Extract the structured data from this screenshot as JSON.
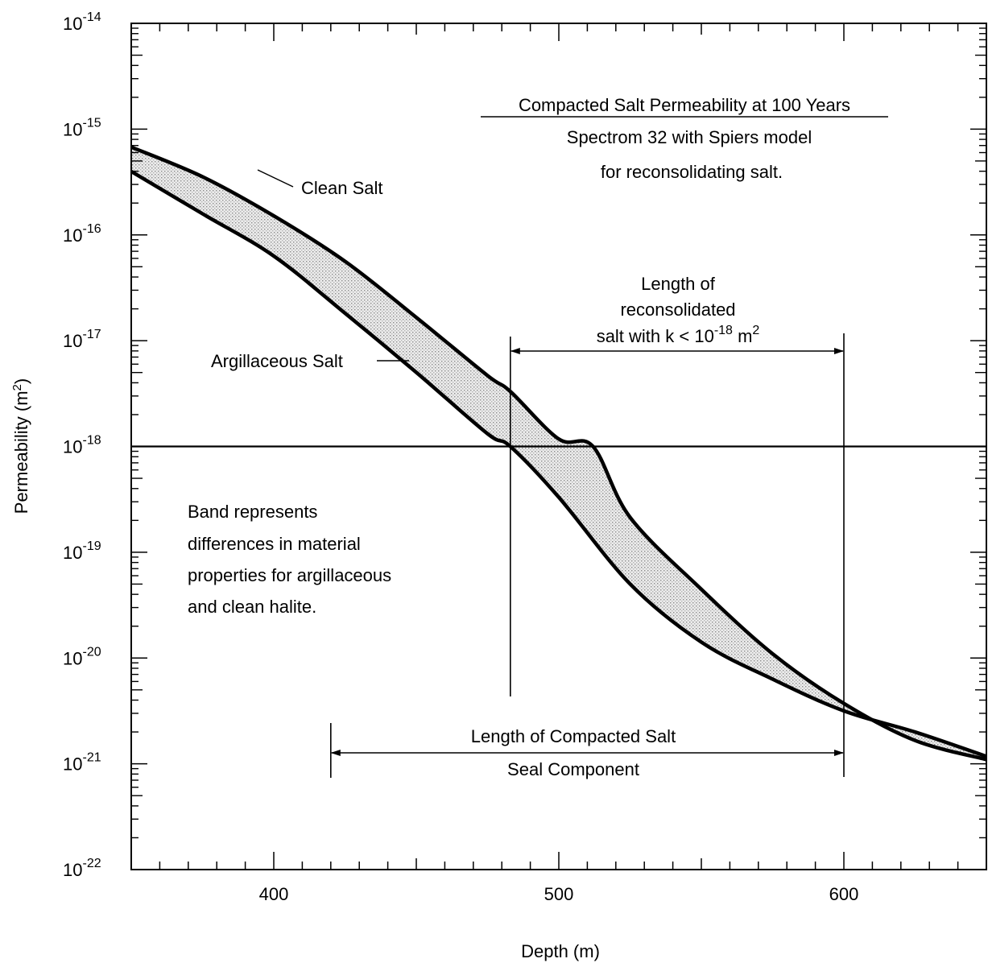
{
  "chart_data": {
    "type": "area",
    "title": "Compacted Salt Permeability at 100 Years",
    "subtitle": [
      "Spectrom 32 with Spiers model",
      "for reconsolidating salt."
    ],
    "xlabel": "Depth (m)",
    "ylabel_main": "Permeability (m",
    "ylabel_sup": "2",
    "ylabel_close": ")",
    "xlim": [
      350,
      650
    ],
    "ylim_exponent": [
      -22,
      -14
    ],
    "y_scale": "log",
    "x_ticks": [
      400,
      500,
      600
    ],
    "x_tick_labels": [
      "400",
      "500",
      "600"
    ],
    "y_tick_exponents": [
      -14,
      -15,
      -16,
      -17,
      -18,
      -19,
      -20,
      -21,
      -22
    ],
    "y_tick_base": "10",
    "y_tick_sups": [
      "-14",
      "-15",
      "-16",
      "-17",
      "-18",
      "-19",
      "-20",
      "-21",
      "-22"
    ],
    "series": [
      {
        "name": "Clean Salt",
        "x": [
          350,
          375,
          400,
          425,
          450,
          475,
          483,
          500,
          512,
          525,
          550,
          575,
          600,
          625,
          650
        ],
        "log10_y": [
          -15.17,
          -15.45,
          -15.82,
          -16.25,
          -16.78,
          -17.33,
          -17.48,
          -17.93,
          -18.0,
          -18.67,
          -19.35,
          -19.96,
          -20.43,
          -20.78,
          -20.96
        ]
      },
      {
        "name": "Argillaceous Salt",
        "x": [
          350,
          375,
          400,
          425,
          450,
          475,
          483,
          500,
          525,
          550,
          575,
          600,
          625,
          650
        ],
        "log10_y": [
          -15.4,
          -15.8,
          -16.2,
          -16.74,
          -17.3,
          -17.88,
          -18.0,
          -18.48,
          -19.3,
          -19.85,
          -20.2,
          -20.5,
          -20.7,
          -20.93
        ]
      }
    ],
    "reference_line": {
      "log10_y": -18
    },
    "annotations": {
      "clean_salt_label": "Clean Salt",
      "argillaceous_label": "Argillaceous Salt",
      "reconsolidated_lines": [
        "Length of",
        "reconsolidated"
      ],
      "reconsolidated_line3_prefix": "salt with k < 10",
      "reconsolidated_line3_sup": "-18",
      "reconsolidated_line3_unit": " m",
      "reconsolidated_line3_unit_sup": "2",
      "reconsolidated_range_x": [
        483,
        600
      ],
      "band_note": [
        "Band represents",
        "differences in material",
        "properties for argillaceous",
        "and clean halite."
      ],
      "compacted_lines": [
        "Length of Compacted Salt",
        "Seal Component"
      ],
      "compacted_range_x": [
        420,
        600
      ]
    }
  }
}
